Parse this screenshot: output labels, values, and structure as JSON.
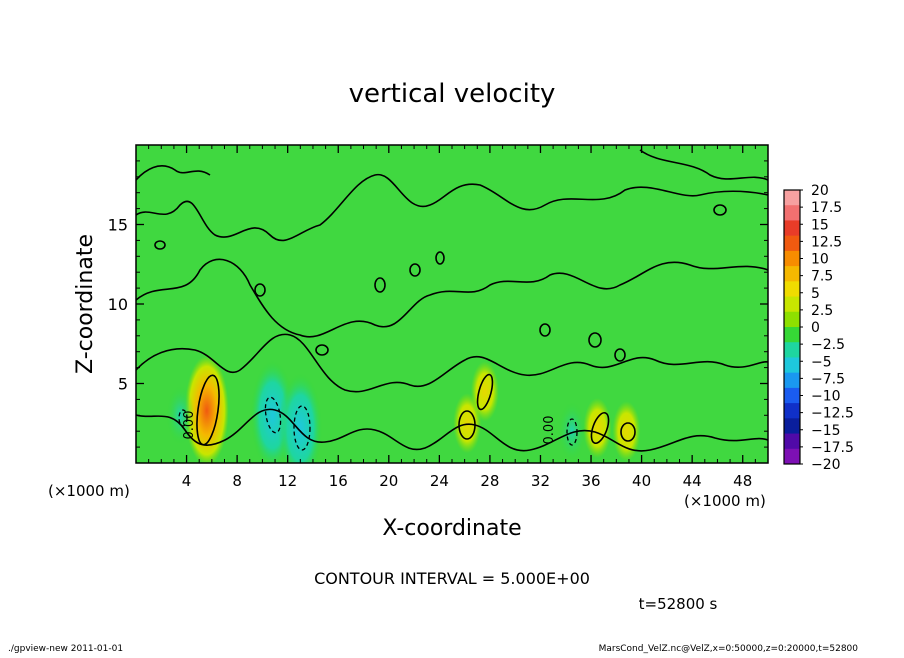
{
  "chart_data": {
    "type": "heatmap",
    "title": "vertical velocity",
    "xlabel": "X-coordinate",
    "ylabel": "Z-coordinate",
    "x_unit_left": "(×1000 m)",
    "x_unit_right": "(×1000 m)",
    "xlim": [
      0,
      50
    ],
    "ylim": [
      0,
      20
    ],
    "x_ticks": [
      "4",
      "8",
      "12",
      "16",
      "20",
      "24",
      "28",
      "32",
      "36",
      "40",
      "44",
      "48"
    ],
    "y_ticks": [
      "5",
      "10",
      "15"
    ],
    "colorbar_labels": [
      "20",
      "17.5",
      "15",
      "12.5",
      "10",
      "7.5",
      "5",
      "2.5",
      "0",
      "−2.5",
      "−5",
      "−7.5",
      "−10",
      "−12.5",
      "−15",
      "−17.5",
      "−20"
    ],
    "colorbar_colors": [
      "#f7a0a0",
      "#f27070",
      "#e83c28",
      "#f05a10",
      "#f78c00",
      "#f5b800",
      "#f0dc00",
      "#c8e600",
      "#8ee000",
      "#36d836",
      "#1ed6a0",
      "#1ec8dc",
      "#1a98f0",
      "#1a5cf0",
      "#1030c8",
      "#0a1e9c",
      "#500aa8",
      "#7d10b4"
    ],
    "background_value": 0,
    "contour_label": "0.00",
    "features": [
      {
        "kind": "updraft",
        "x": 5.6,
        "z": 3.3,
        "peak": 10
      },
      {
        "kind": "updraft",
        "x": 26.2,
        "z": 2.5,
        "peak": 5
      },
      {
        "kind": "updraft",
        "x": 27.6,
        "z": 4.5,
        "peak": 5
      },
      {
        "kind": "updraft",
        "x": 36.5,
        "z": 2.2,
        "peak": 5
      },
      {
        "kind": "updraft",
        "x": 38.8,
        "z": 2.0,
        "peak": 5
      },
      {
        "kind": "downdraft",
        "x": 10.8,
        "z": 3.0,
        "peak": -7.5
      },
      {
        "kind": "downdraft",
        "x": 13.0,
        "z": 2.2,
        "peak": -7.5
      },
      {
        "kind": "downdraft",
        "x": 34.5,
        "z": 2.0,
        "peak": -5
      },
      {
        "kind": "downdraft",
        "x": 3.5,
        "z": 3.0,
        "peak": -5
      }
    ]
  },
  "contour_interval": "CONTOUR INTERVAL = 5.000E+00",
  "time_label": "t=52800 s",
  "footer_left": "./gpview-new  2011-01-01",
  "footer_right": "MarsCond_VelZ.nc@VelZ,x=0:50000,z=0:20000,t=52800"
}
